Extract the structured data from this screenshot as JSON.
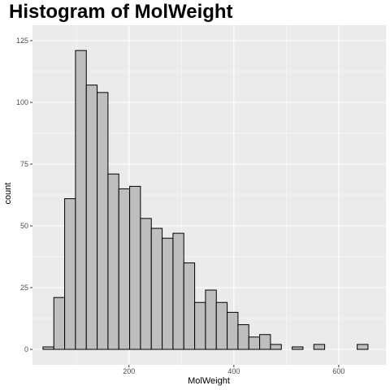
{
  "chart_data": {
    "type": "bar",
    "title": "Histogram of MolWeight",
    "xlabel": "MolWeight",
    "ylabel": "count",
    "xlim": [
      16,
      690
    ],
    "ylim": [
      -6.25,
      131.25
    ],
    "x_ticks": [
      200,
      400,
      600
    ],
    "y_ticks": [
      0,
      25,
      50,
      75,
      100,
      125
    ],
    "grid": true,
    "legend": "none",
    "bin_width": 20.66,
    "bin_start": 36,
    "values": [
      1,
      21,
      61,
      121,
      107,
      104,
      71,
      65,
      66,
      53,
      49,
      45,
      47,
      35,
      19,
      24,
      19,
      15,
      10,
      5,
      6,
      2,
      0,
      1,
      0,
      2,
      0,
      0,
      0,
      2
    ],
    "colors": {
      "panel_background": "#ebebeb",
      "grid_major": "#ffffff",
      "bar_fill": "#bebebe",
      "bar_stroke": "#000000",
      "tick_label": "#4d4d4d"
    }
  }
}
